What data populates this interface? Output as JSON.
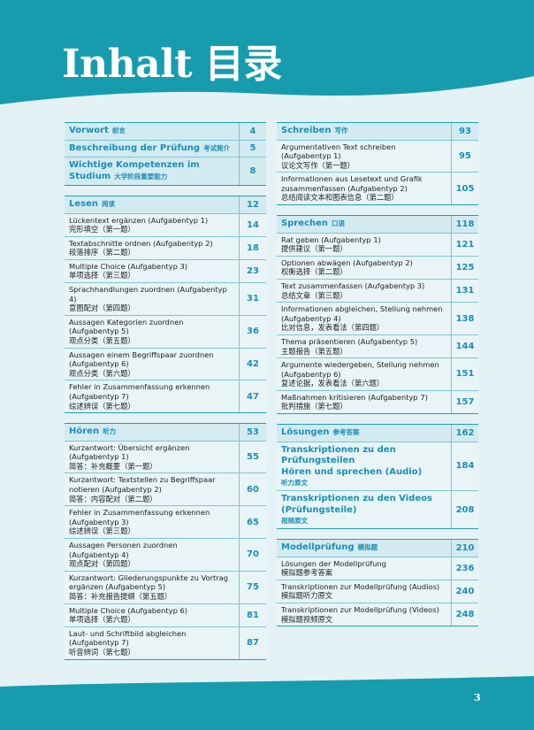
{
  "title": "Inhalt 目录",
  "page_number": "3",
  "left": [
    {
      "rows": [
        {
          "style": "head",
          "de": [
            "Vorwort"
          ],
          "zh": "前言",
          "page": 4
        },
        {
          "style": "head",
          "de": [
            "Beschreibung der Prüfung"
          ],
          "zh": "考试简介",
          "page": 5
        },
        {
          "style": "head",
          "de": [
            "Wichtige Kompetenzen im Studium"
          ],
          "zh": "大学阶段重要能力",
          "page": 8
        }
      ]
    },
    {
      "rows": [
        {
          "style": "head",
          "de": [
            "Lesen"
          ],
          "zh": "阅读",
          "page": 12
        },
        {
          "style": "item",
          "de": [
            "Lückentext ergänzen (Aufgabentyp 1)"
          ],
          "zh": "完形填空（第一题）",
          "page": 14
        },
        {
          "style": "item",
          "de": [
            "Textabschnitte ordnen (Aufgabentyp 2)"
          ],
          "zh": "段落排序（第二题）",
          "page": 18
        },
        {
          "style": "item",
          "de": [
            "Multiple Choice (Aufgabentyp 3)"
          ],
          "zh": "单项选择（第三题）",
          "page": 23
        },
        {
          "style": "item",
          "de": [
            "Sprachhandlungen zuordnen (Aufgabentyp 4)"
          ],
          "zh": "意图配对（第四题）",
          "page": 31
        },
        {
          "style": "item",
          "de": [
            "Aussagen Kategorien zuordnen",
            "(Aufgabentyp 5)"
          ],
          "zh": "观点分类（第五题）",
          "page": 36
        },
        {
          "style": "item",
          "de": [
            "Aussagen einem Begriffspaar zuordnen",
            "(Aufgabentyp 6)"
          ],
          "zh": "观点分类（第六题）",
          "page": 42
        },
        {
          "style": "item",
          "de": [
            "Fehler in Zusammenfassung erkennen",
            "(Aufgabentyp 7)"
          ],
          "zh": "综述辨误（第七题）",
          "page": 47
        }
      ]
    },
    {
      "rows": [
        {
          "style": "head",
          "de": [
            "Hören"
          ],
          "zh": "听力",
          "page": 53
        },
        {
          "style": "item",
          "de": [
            "Kurzantwort: Übersicht ergänzen",
            "(Aufgabentyp 1)"
          ],
          "zh": "简答：补充概要（第一题）",
          "page": 55
        },
        {
          "style": "item",
          "de": [
            "Kurzantwort: Textstellen zu Begriffspaar",
            "notieren  (Aufgabentyp 2)"
          ],
          "zh": "简答：内容配对（第二题）",
          "page": 60
        },
        {
          "style": "item",
          "de": [
            "Fehler in Zusammenfassung erkennen",
            "(Aufgabentyp 3)"
          ],
          "zh": "综述辨误（第三题）",
          "page": 65
        },
        {
          "style": "item",
          "de": [
            "Aussagen Personen zuordnen",
            "(Aufgabentyp 4)"
          ],
          "zh": "观点配对（第四题）",
          "page": 70
        },
        {
          "style": "item",
          "de": [
            "Kurzantwort: Gliederungspunkte zu Vortrag",
            "ergänzen (Aufgabentyp 5)"
          ],
          "zh": "简答：补充报告提纲（第五题）",
          "page": 75
        },
        {
          "style": "item",
          "de": [
            "Multiple Choice (Aufgabentyp 6)"
          ],
          "zh": "单项选择（第六题）",
          "page": 81
        },
        {
          "style": "item",
          "de": [
            "Laut- und Schriftbild abgleichen",
            "(Aufgabentyp 7)"
          ],
          "zh": "听音辨词（第七题）",
          "page": 87
        }
      ]
    }
  ],
  "right": [
    {
      "rows": [
        {
          "style": "head",
          "de": [
            "Schreiben"
          ],
          "zh": "写作",
          "page": 93
        },
        {
          "style": "item",
          "de": [
            "Argumentativen Text schreiben",
            "(Aufgabentyp 1)"
          ],
          "zh": "议论文写作（第一题）",
          "page": 95
        },
        {
          "style": "item",
          "de": [
            "Informationen aus Lesetext und Grafik",
            "zusammenfassen (Aufgabentyp 2)"
          ],
          "zh": "总结阅读文本和图表信息（第二题）",
          "page": 105
        }
      ]
    },
    {
      "rows": [
        {
          "style": "head",
          "de": [
            "Sprechen"
          ],
          "zh": "口语",
          "page": 118
        },
        {
          "style": "item",
          "de": [
            "Rat geben (Aufgabentyp 1)"
          ],
          "zh": "提供建议（第一题）",
          "page": 121
        },
        {
          "style": "item",
          "de": [
            "Optionen abwägen (Aufgabentyp 2)"
          ],
          "zh": "权衡选择（第二题）",
          "page": 125
        },
        {
          "style": "item",
          "de": [
            "Text zusammenfassen (Aufgabentyp 3)"
          ],
          "zh": "总结文章（第三题）",
          "page": 131
        },
        {
          "style": "item",
          "de": [
            "Informationen abgleichen, Stellung nehmen",
            "(Aufgabentyp 4)"
          ],
          "zh": "比对信息，发表看法（第四题）",
          "page": 138
        },
        {
          "style": "item",
          "de": [
            "Thema präsentieren (Aufgabentyp 5)"
          ],
          "zh": "主题报告（第五题）",
          "page": 144
        },
        {
          "style": "item",
          "de": [
            "Argumente wiedergeben, Stellung nehmen",
            "(Aufgabentyp 6)"
          ],
          "zh": "复述论据，发表看法（第六题）",
          "page": 151
        },
        {
          "style": "item",
          "de": [
            "Maßnahmen kritisieren  (Aufgabentyp 7)"
          ],
          "zh": "批判措施（第七题）",
          "page": 157
        }
      ]
    },
    {
      "rows": [
        {
          "style": "head",
          "de": [
            "Lösungen"
          ],
          "zh": "参考答案",
          "page": 162
        },
        {
          "style": "sub",
          "de": [
            "Transkriptionen zu den Prüfungsteilen",
            "Hören und sprechen (Audio)"
          ],
          "zh": "听力原文",
          "page": 184
        },
        {
          "style": "sub",
          "de": [
            "Transkriptionen zu den Videos",
            "(Prüfungsteile)"
          ],
          "zh": "视频原文",
          "page": 208
        }
      ]
    },
    {
      "rows": [
        {
          "style": "head",
          "de": [
            "Modellprüfung"
          ],
          "zh": "模拟题",
          "page": 210
        },
        {
          "style": "item",
          "de": [
            "Lösungen der Modellprüfung"
          ],
          "zh": "模拟题参考答案",
          "page": 236
        },
        {
          "style": "item",
          "de": [
            "Transkriptionen zur Modellprüfung (Audios)"
          ],
          "zh": "模拟题听力原文",
          "page": 240
        },
        {
          "style": "item",
          "de": [
            "Transkriptionen zur Modellprüfung (Videos)"
          ],
          "zh": "模拟题视频原文",
          "page": 248
        }
      ]
    }
  ]
}
